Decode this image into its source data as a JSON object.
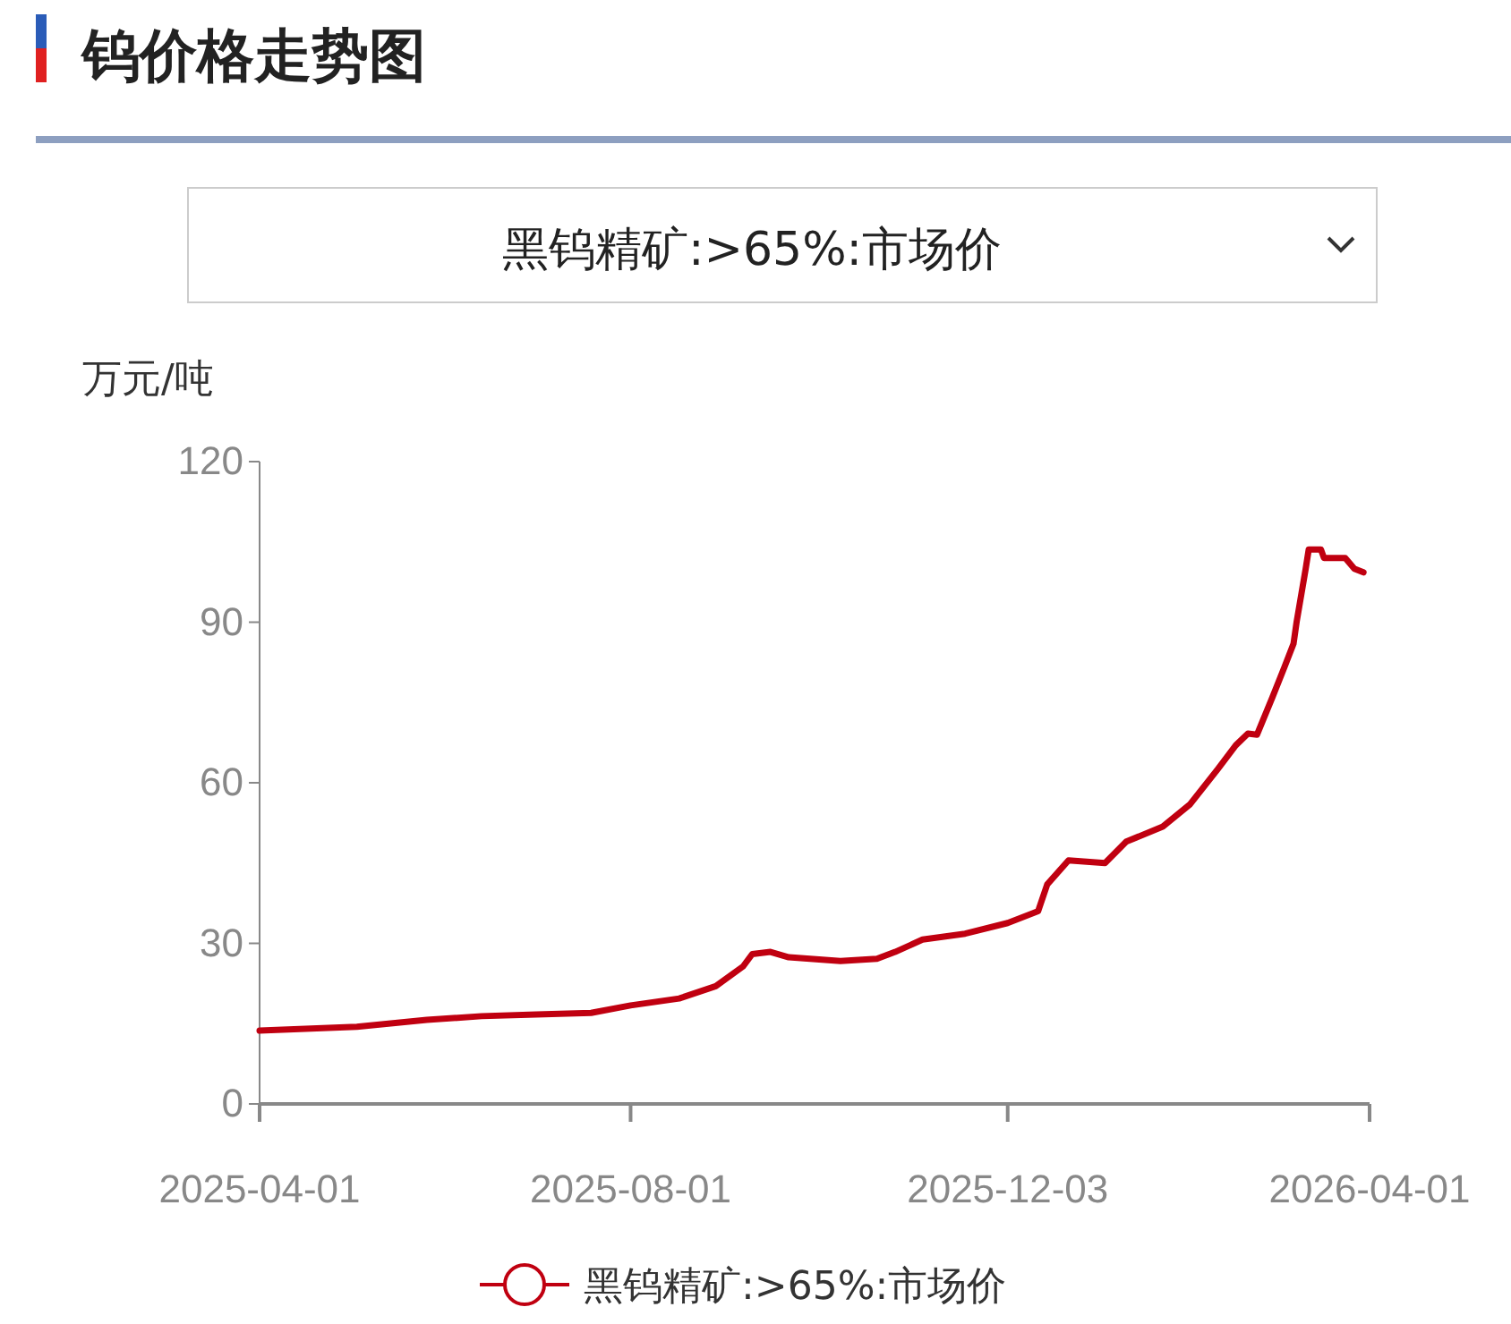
{
  "chart_data": {
    "type": "line",
    "title": "钨价格走势图",
    "subtitle": "黑钨精矿:>65%:市场价",
    "ylabel": "万元/吨",
    "xlim": [
      "2025-04-01",
      "2026-04-01"
    ],
    "xticks": [
      "2025-04-01",
      "2025-08-01",
      "2025-12-03",
      "2026-04-01"
    ],
    "ylim": [
      0,
      120
    ],
    "yticks": [
      0,
      30,
      60,
      90,
      120
    ],
    "legend": "bottom",
    "series": [
      {
        "name": "黑钨精矿:>65%:市场价",
        "color": "#c00010",
        "x": [
          "2025-04-01",
          "2025-05-03",
          "2025-05-26",
          "2025-06-13",
          "2025-07-01",
          "2025-07-19",
          "2025-08-01",
          "2025-08-17",
          "2025-08-29",
          "2025-09-07",
          "2025-09-10",
          "2025-09-16",
          "2025-09-22",
          "2025-10-09",
          "2025-10-21",
          "2025-10-27",
          "2025-11-05",
          "2025-11-19",
          "2025-12-03",
          "2025-12-13",
          "2025-12-16",
          "2025-12-23",
          "2026-01-04",
          "2026-01-11",
          "2026-01-23",
          "2026-02-01",
          "2026-02-10",
          "2026-02-16",
          "2026-02-20",
          "2026-02-23",
          "2026-02-28",
          "2026-03-04",
          "2026-03-07",
          "2026-03-08",
          "2026-03-11",
          "2026-03-12",
          "2026-03-16",
          "2026-03-17",
          "2026-03-24",
          "2026-03-27",
          "2026-03-30"
        ],
        "values": [
          13.7,
          14.4,
          15.7,
          16.4,
          16.7,
          17.0,
          18.4,
          19.7,
          22,
          25.7,
          28,
          28.4,
          27.4,
          26.7,
          27.1,
          28.4,
          30.7,
          31.8,
          33.8,
          36,
          41,
          45.5,
          45,
          49,
          51.8,
          56,
          62.5,
          67,
          69.2,
          69,
          75.9,
          81.6,
          86,
          90,
          100,
          103.6,
          103.6,
          102,
          102,
          100,
          99.3
        ]
      }
    ]
  }
}
